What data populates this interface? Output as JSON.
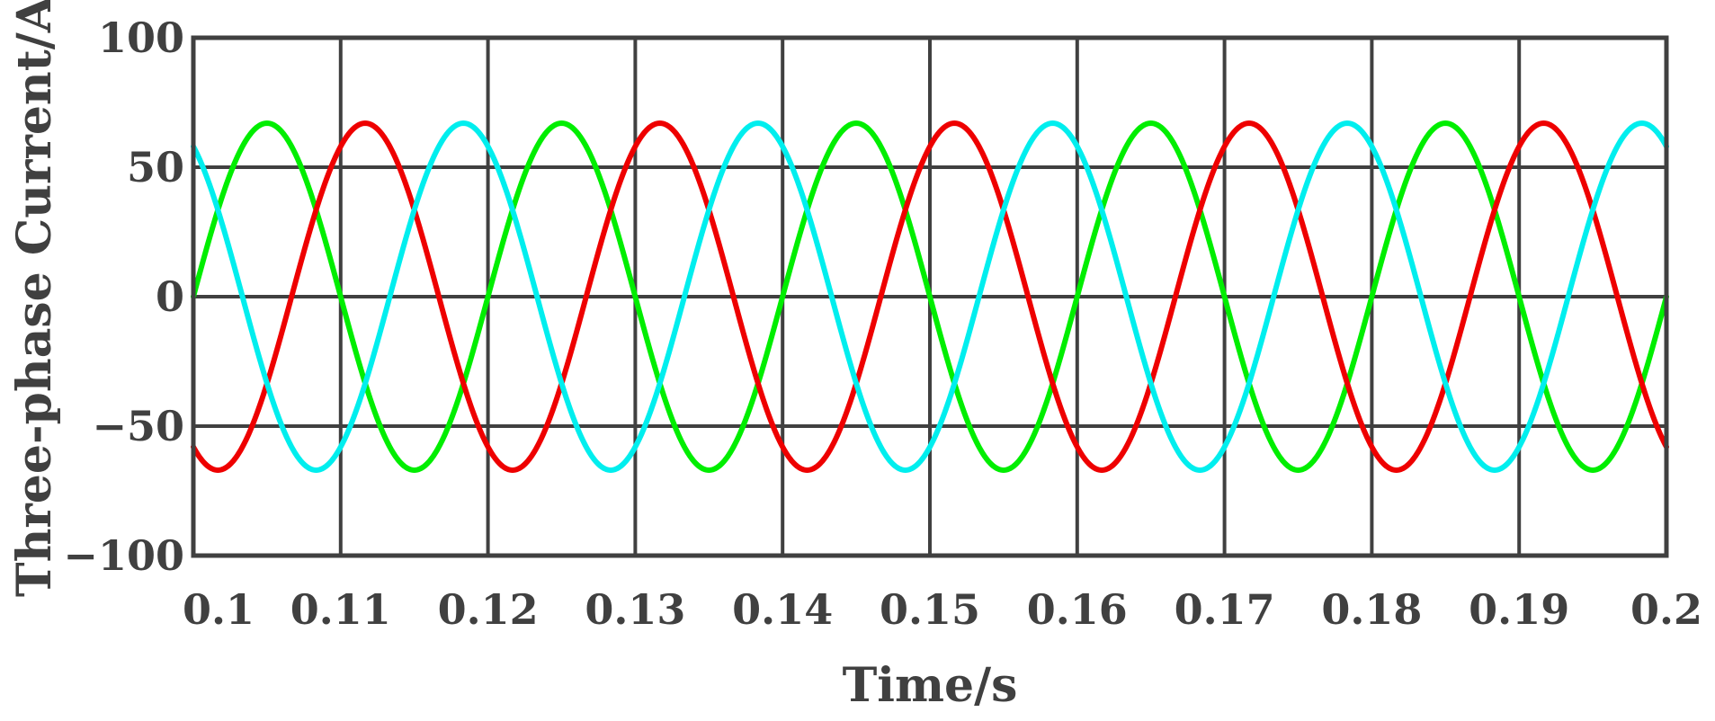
{
  "chart_data": {
    "type": "line",
    "title": "",
    "xlabel": "Time/s",
    "ylabel": "Three-phase Current/A",
    "xlim": [
      0.1,
      0.2
    ],
    "ylim": [
      -100,
      100
    ],
    "grid": true,
    "x_ticks": [
      0.1,
      0.11,
      0.12,
      0.13,
      0.14,
      0.15,
      0.16,
      0.17,
      0.18,
      0.19,
      0.2
    ],
    "x_tick_labels": [
      "0.1",
      "0.11",
      "0.12",
      "0.13",
      "0.14",
      "0.15",
      "0.16",
      "0.17",
      "0.18",
      "0.19",
      "0.2"
    ],
    "y_ticks": [
      -100,
      -50,
      0,
      50,
      100
    ],
    "y_tick_labels": [
      "−100",
      "−50",
      "0",
      "50",
      "100"
    ],
    "waveform": {
      "amplitude": 67,
      "frequency_hz": 50
    },
    "series": [
      {
        "color": "#00ee00",
        "phase_deg": 0
      },
      {
        "color": "#ee0000",
        "phase_deg": -120
      },
      {
        "color": "#00eeee",
        "phase_deg": 120
      }
    ]
  }
}
